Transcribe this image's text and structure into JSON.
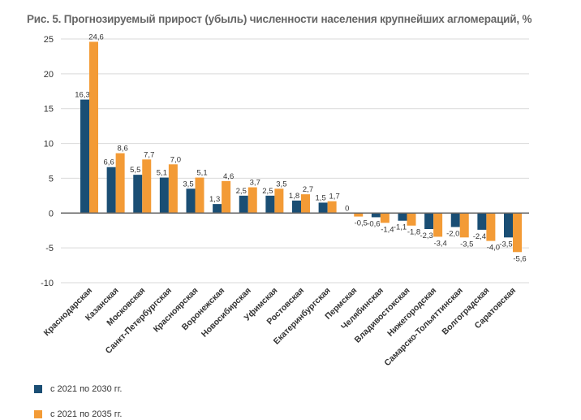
{
  "chart_data": {
    "type": "bar",
    "title": "Рис. 5. Прогнозируемый прирост (убыль) численности населения крупнейших агломераций, %",
    "xlabel": "",
    "ylabel": "",
    "ylim": [
      -10,
      25
    ],
    "yticks": [
      25,
      20,
      15,
      10,
      5,
      0,
      -5,
      -10
    ],
    "grid": true,
    "legend_position": "bottom-left",
    "categories": [
      "Краснодарская",
      "Казанская",
      "Московская",
      "Санкт-Петербургская",
      "Красноярская",
      "Воронежская",
      "Новосибирская",
      "Уфимская",
      "Ростовская",
      "Екатеринбургская",
      "Пермская",
      "Челябинская",
      "Владивостокская",
      "Нижегородская",
      "Самарско-Тольяттинская",
      "Волгоградская",
      "Саратовская"
    ],
    "series": [
      {
        "name": "с 2021 по 2030 гг.",
        "color": "#1a4e74",
        "values": [
          16.3,
          6.6,
          5.5,
          5.1,
          3.5,
          1.3,
          2.5,
          2.5,
          1.8,
          1.5,
          0,
          -0.6,
          -1.1,
          -2.3,
          -2.0,
          -2.4,
          -3.5
        ],
        "labels": [
          "16,3",
          "6,6",
          "5,5",
          "5,1",
          "3,5",
          "1,3",
          "2,5",
          "2,5",
          "1,8",
          "1,5",
          "0",
          "-0,6",
          "-1,1",
          "-2,3",
          "-2,0",
          "-2,4",
          "-3,5"
        ]
      },
      {
        "name": "с 2021 по 2035 гг.",
        "color": "#f39b36",
        "values": [
          24.6,
          8.6,
          7.7,
          7.0,
          5.1,
          4.6,
          3.7,
          3.5,
          2.7,
          1.7,
          -0.5,
          -1.4,
          -1.8,
          -3.4,
          -3.5,
          -4.0,
          -5.6
        ],
        "labels": [
          "24,6",
          "8,6",
          "7,7",
          "7,0",
          "5,1",
          "4,6",
          "3,7",
          "3,5",
          "2,7",
          "1,7",
          "-0,5",
          "-1,4",
          "-1,8",
          "-3,4",
          "-3,5",
          "-4,0",
          "-5,6"
        ]
      }
    ]
  }
}
